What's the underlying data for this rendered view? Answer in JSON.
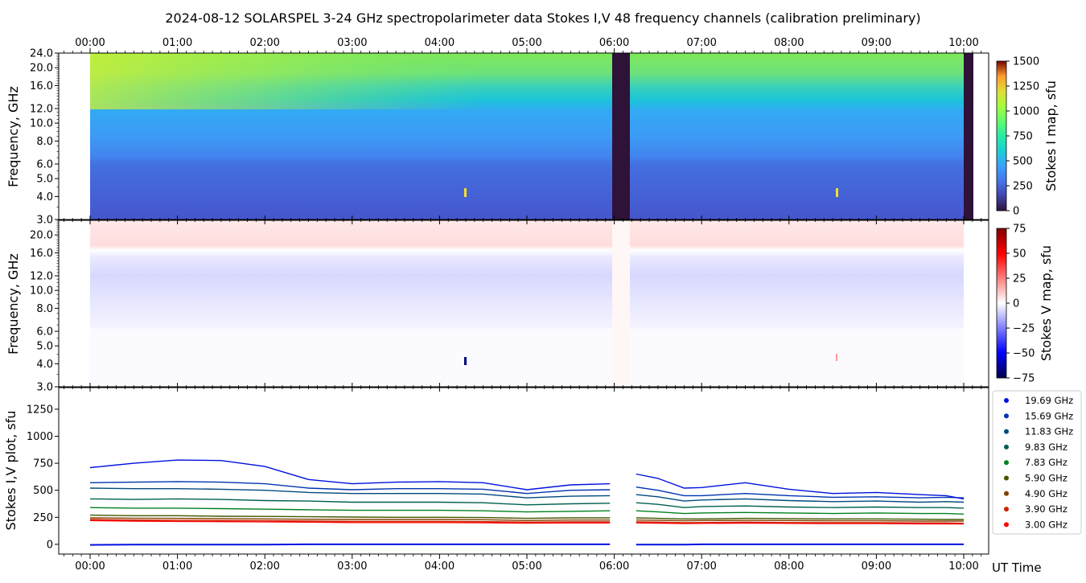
{
  "title": "2024-08-12  SOLARSPEL  3-24 GHz spectropolarimeter data   Stokes I,V   48 frequency channels   (calibration preliminary)",
  "time_ticks": [
    "00:00",
    "01:00",
    "02:00",
    "03:00",
    "04:00",
    "05:00",
    "06:00",
    "07:00",
    "08:00",
    "09:00",
    "10:00"
  ],
  "time_label": "UT Time",
  "panel1": {
    "ylabel": "Frequency, GHz",
    "yticks": [
      "24.0",
      "20.0",
      "16.0",
      "12.0",
      "10.0",
      "8.0",
      "6.0",
      "5.0",
      "4.0",
      "3.0"
    ],
    "colorbar_label": "Stokes I map, sfu",
    "colorbar_ticks": [
      "1500",
      "1250",
      "1000",
      "750",
      "500",
      "250",
      "0"
    ]
  },
  "panel2": {
    "ylabel": "Frequency, GHz",
    "yticks": [
      "20.0",
      "16.0",
      "12.0",
      "10.0",
      "8.0",
      "6.0",
      "5.0",
      "4.0",
      "3.0"
    ],
    "colorbar_label": "Stokes V map, sfu",
    "colorbar_ticks": [
      "75",
      "50",
      "25",
      "0",
      "−25",
      "−50",
      "−75"
    ]
  },
  "panel3": {
    "ylabel": "Stokes I,V plot, sfu",
    "yticks": [
      "1250",
      "1000",
      "750",
      "500",
      "250",
      "0"
    ]
  },
  "legend": [
    {
      "label": "19.69 GHz",
      "color": "#0010e0"
    },
    {
      "label": "15.69 GHz",
      "color": "#0033b0"
    },
    {
      "label": "11.83 GHz",
      "color": "#004a80"
    },
    {
      "label": "9.83 GHz",
      "color": "#006050"
    },
    {
      "label": "7.83 GHz",
      "color": "#008020"
    },
    {
      "label": "5.90 GHz",
      "color": "#405800"
    },
    {
      "label": "4.90 GHz",
      "color": "#804000"
    },
    {
      "label": "3.90 GHz",
      "color": "#d02000"
    },
    {
      "label": "3.00 GHz",
      "color": "#ff0000"
    }
  ],
  "chart_data": {
    "type": "line",
    "title": "2024-08-12  SOLARSPEL  3-24 GHz spectropolarimeter data   Stokes I,V   48 frequency channels   (calibration preliminary)",
    "xlabel": "UT Time",
    "ylabel": "Stokes I,V plot, sfu",
    "ylim": [
      -90,
      1450
    ],
    "xlim_hours": [
      -0.3,
      10.2
    ],
    "gaps_hours": [
      [
        6.0,
        6.2
      ]
    ],
    "x": [
      0.0,
      0.5,
      1.0,
      1.5,
      2.0,
      2.5,
      3.0,
      3.5,
      4.0,
      4.5,
      5.0,
      5.5,
      5.95,
      6.25,
      6.5,
      6.8,
      7.0,
      7.5,
      8.0,
      8.5,
      9.0,
      9.5,
      9.8,
      10.0
    ],
    "series": [
      {
        "name": "19.69 GHz",
        "values": [
          710,
          750,
          780,
          775,
          720,
          600,
          560,
          575,
          580,
          570,
          505,
          550,
          560,
          650,
          610,
          520,
          525,
          570,
          510,
          470,
          480,
          460,
          450,
          420
        ]
      },
      {
        "name": "15.69 GHz",
        "values": [
          570,
          575,
          580,
          575,
          560,
          520,
          505,
          515,
          515,
          510,
          470,
          500,
          505,
          530,
          500,
          450,
          450,
          470,
          450,
          435,
          440,
          430,
          435,
          430
        ]
      },
      {
        "name": "11.83 GHz",
        "values": [
          520,
          515,
          515,
          510,
          500,
          480,
          470,
          470,
          470,
          465,
          430,
          445,
          450,
          460,
          440,
          400,
          410,
          420,
          405,
          395,
          400,
          390,
          395,
          390
        ]
      },
      {
        "name": "9.83 GHz",
        "values": [
          420,
          415,
          420,
          415,
          405,
          400,
          390,
          390,
          390,
          385,
          365,
          375,
          380,
          385,
          370,
          340,
          350,
          355,
          345,
          340,
          345,
          340,
          340,
          335
        ]
      },
      {
        "name": "7.83 GHz",
        "values": [
          340,
          335,
          335,
          330,
          325,
          320,
          315,
          315,
          315,
          310,
          300,
          305,
          310,
          310,
          300,
          285,
          290,
          295,
          290,
          285,
          290,
          285,
          285,
          280
        ]
      },
      {
        "name": "5.90 GHz",
        "values": [
          270,
          265,
          265,
          260,
          258,
          255,
          252,
          250,
          250,
          248,
          240,
          245,
          245,
          245,
          240,
          235,
          235,
          240,
          238,
          235,
          235,
          232,
          230,
          230
        ]
      },
      {
        "name": "4.90 GHz",
        "values": [
          245,
          242,
          240,
          238,
          235,
          232,
          230,
          230,
          230,
          228,
          220,
          225,
          225,
          225,
          222,
          218,
          220,
          222,
          220,
          218,
          218,
          215,
          215,
          215
        ]
      },
      {
        "name": "3.90 GHz",
        "values": [
          230,
          225,
          222,
          220,
          218,
          215,
          212,
          212,
          212,
          210,
          205,
          208,
          208,
          208,
          205,
          200,
          202,
          205,
          202,
          200,
          200,
          198,
          198,
          195
        ]
      },
      {
        "name": "3.00 GHz",
        "values": [
          220,
          215,
          212,
          210,
          208,
          205,
          202,
          202,
          202,
          200,
          196,
          198,
          198,
          198,
          196,
          192,
          194,
          196,
          194,
          192,
          192,
          190,
          190,
          188
        ]
      }
    ],
    "stokes_v_trace": {
      "name": "Stokes V",
      "values": [
        -5,
        -3,
        -2,
        -2,
        -2,
        0,
        0,
        0,
        0,
        0,
        0,
        0,
        0,
        -2,
        -2,
        -2,
        0,
        0,
        0,
        0,
        0,
        0,
        0,
        0
      ]
    },
    "colorbar_I_range": [
      0,
      1500
    ],
    "colorbar_V_range": [
      -75,
      75
    ],
    "grid": false,
    "legend_position": "right"
  }
}
